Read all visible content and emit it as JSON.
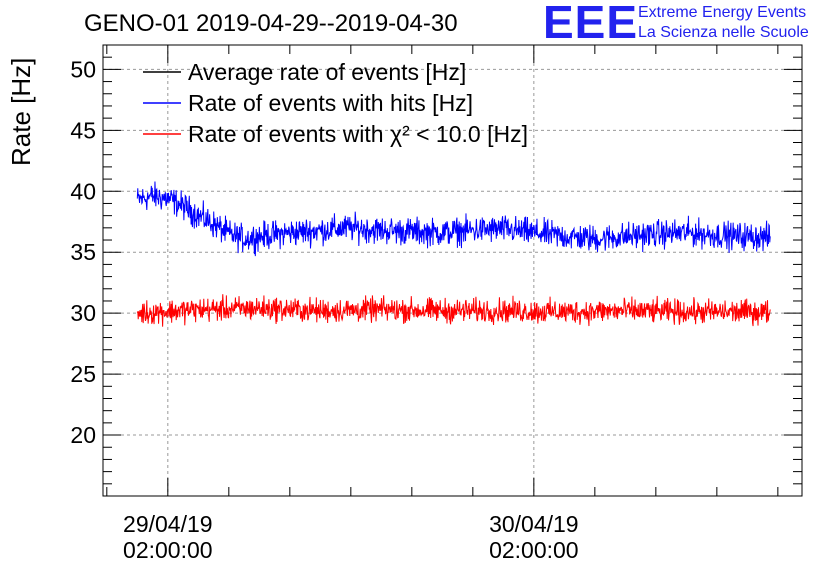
{
  "title": "GENO-01 2019-04-29--2019-04-30",
  "logo": {
    "mark": "EEE",
    "line1": "Extreme Energy Events",
    "line2": "La Scienza nelle Scuole",
    "color": "#2222ee"
  },
  "chart_data": {
    "type": "line",
    "ylabel": "Rate [Hz]",
    "ylim": [
      15,
      52
    ],
    "xlim": [
      "2019-04-28T21:45:00",
      "2019-04-30T19:35:00"
    ],
    "yticks": [
      20,
      25,
      30,
      35,
      40,
      45,
      50
    ],
    "xticks": [
      {
        "x": "2019-04-29T02:00:00",
        "label_date": "29/04/19",
        "label_time": "02:00:00"
      },
      {
        "x": "2019-04-30T02:00:00",
        "label_date": "30/04/19",
        "label_time": "02:00:00"
      }
    ],
    "grid": true,
    "legend_position": "top-left",
    "series": [
      {
        "name": "Average rate of events [Hz]",
        "color": "#000000",
        "points": []
      },
      {
        "name": "Rate of events with hits [Hz]",
        "color": "#0000ff",
        "points": [
          [
            "2019-04-29T00:00:00",
            39.3
          ],
          [
            "2019-04-29T01:00:00",
            39.6
          ],
          [
            "2019-04-29T02:00:00",
            39.4
          ],
          [
            "2019-04-29T03:00:00",
            38.8
          ],
          [
            "2019-04-29T04:00:00",
            38.0
          ],
          [
            "2019-04-29T05:00:00",
            37.3
          ],
          [
            "2019-04-29T06:00:00",
            36.5
          ],
          [
            "2019-04-29T07:00:00",
            36.1
          ],
          [
            "2019-04-29T08:00:00",
            36.3
          ],
          [
            "2019-04-29T10:00:00",
            36.6
          ],
          [
            "2019-04-29T12:00:00",
            36.8
          ],
          [
            "2019-04-29T14:00:00",
            37.0
          ],
          [
            "2019-04-29T16:00:00",
            36.8
          ],
          [
            "2019-04-29T18:00:00",
            36.7
          ],
          [
            "2019-04-29T20:00:00",
            36.6
          ],
          [
            "2019-04-29T22:00:00",
            36.8
          ],
          [
            "2019-04-30T00:00:00",
            36.9
          ],
          [
            "2019-04-30T02:00:00",
            36.6
          ],
          [
            "2019-04-30T04:00:00",
            36.3
          ],
          [
            "2019-04-30T06:00:00",
            36.1
          ],
          [
            "2019-04-30T08:00:00",
            36.3
          ],
          [
            "2019-04-30T10:00:00",
            36.5
          ],
          [
            "2019-04-30T12:00:00",
            36.6
          ],
          [
            "2019-04-30T14:00:00",
            36.4
          ],
          [
            "2019-04-30T16:00:00",
            36.3
          ],
          [
            "2019-04-30T17:30:00",
            36.2
          ]
        ],
        "noise": 0.85
      },
      {
        "name": "Rate of events with χ² < 10.0 [Hz]",
        "color": "#ff0000",
        "points": [
          [
            "2019-04-29T00:00:00",
            30.0
          ],
          [
            "2019-04-29T04:00:00",
            30.3
          ],
          [
            "2019-04-29T08:00:00",
            30.4
          ],
          [
            "2019-04-29T12:00:00",
            30.2
          ],
          [
            "2019-04-29T16:00:00",
            30.3
          ],
          [
            "2019-04-29T20:00:00",
            30.2
          ],
          [
            "2019-04-30T00:00:00",
            30.2
          ],
          [
            "2019-04-30T04:00:00",
            30.1
          ],
          [
            "2019-04-30T08:00:00",
            30.2
          ],
          [
            "2019-04-30T12:00:00",
            30.1
          ],
          [
            "2019-04-30T17:30:00",
            30.1
          ]
        ],
        "noise": 0.75
      }
    ]
  }
}
